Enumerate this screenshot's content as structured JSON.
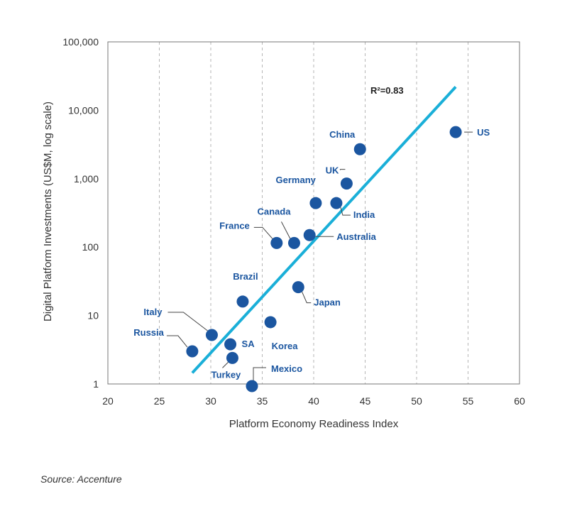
{
  "chart_data": {
    "type": "scatter",
    "xlabel": "Platform Economy Readiness Index",
    "ylabel": "Digital Platform Investments (US$M, log scale)",
    "xlim": [
      20,
      60
    ],
    "ylim": [
      1,
      100000
    ],
    "yscale": "log",
    "x_ticks": [
      "20",
      "25",
      "30",
      "35",
      "40",
      "45",
      "50",
      "55",
      "60"
    ],
    "y_ticks": [
      "1",
      "10",
      "100",
      "1,000",
      "10,000",
      "100,000"
    ],
    "grid": "vertical dashed",
    "points": [
      {
        "label": "US",
        "x": 53.8,
        "y": 4800
      },
      {
        "label": "China",
        "x": 44.5,
        "y": 2700
      },
      {
        "label": "UK",
        "x": 43.2,
        "y": 850
      },
      {
        "label": "Germany",
        "x": 40.2,
        "y": 440
      },
      {
        "label": "India",
        "x": 42.2,
        "y": 440
      },
      {
        "label": "Australia",
        "x": 39.6,
        "y": 150
      },
      {
        "label": "Canada",
        "x": 38.1,
        "y": 115
      },
      {
        "label": "France",
        "x": 36.4,
        "y": 115
      },
      {
        "label": "Japan",
        "x": 38.5,
        "y": 26
      },
      {
        "label": "Brazil",
        "x": 33.1,
        "y": 16
      },
      {
        "label": "Korea",
        "x": 35.8,
        "y": 8
      },
      {
        "label": "Italy",
        "x": 30.1,
        "y": 5.2
      },
      {
        "label": "SA",
        "x": 31.9,
        "y": 3.8
      },
      {
        "label": "Russia",
        "x": 28.2,
        "y": 3.0
      },
      {
        "label": "Turkey",
        "x": 32.1,
        "y": 2.4
      },
      {
        "label": "Mexico",
        "x": 34.0,
        "y": 0.93
      }
    ],
    "trendline": {
      "x": [
        28.2,
        53.8
      ],
      "y": [
        1.45,
        22000
      ]
    },
    "annotation": "R²=0.83",
    "colors": {
      "point": "#1b56a0",
      "label": "#1b56a0",
      "trend": "#1aafd8",
      "grid": "#b5b5b5",
      "frame": "#777777"
    }
  },
  "source": "Source: Accenture"
}
